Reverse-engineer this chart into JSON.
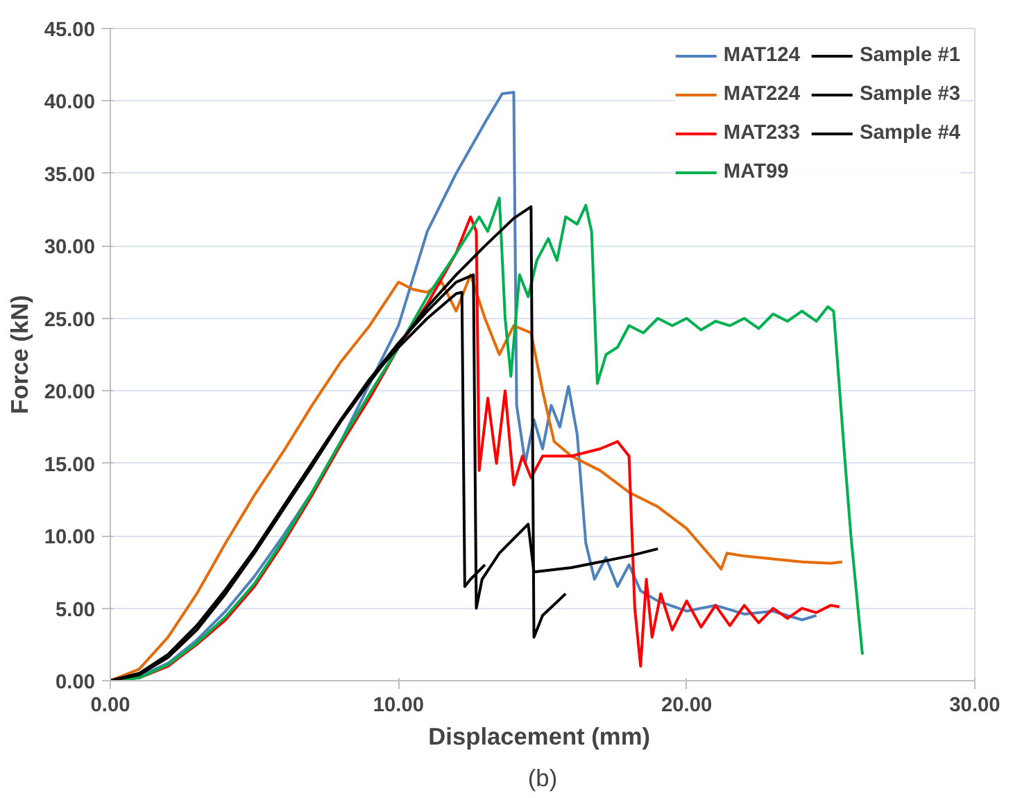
{
  "chart_data": {
    "type": "line",
    "xlabel": "Displacement  (mm)",
    "ylabel": "Force (kN)",
    "annotations": [
      "(b)"
    ],
    "xlim": [
      0,
      30
    ],
    "ylim": [
      0,
      45
    ],
    "xticks": [
      {
        "value": 0,
        "label": "0.00"
      },
      {
        "value": 10,
        "label": "10.00"
      },
      {
        "value": 20,
        "label": "20.00"
      },
      {
        "value": 30,
        "label": "30.00"
      }
    ],
    "yticks": [
      {
        "value": 0,
        "label": "0.00"
      },
      {
        "value": 5,
        "label": "5.00"
      },
      {
        "value": 10,
        "label": "10.00"
      },
      {
        "value": 15,
        "label": "15.00"
      },
      {
        "value": 20,
        "label": "20.00"
      },
      {
        "value": 25,
        "label": "25.00"
      },
      {
        "value": 30,
        "label": "30.00"
      },
      {
        "value": 35,
        "label": "35.00"
      },
      {
        "value": 40,
        "label": "40.00"
      },
      {
        "value": 45,
        "label": "45.00"
      }
    ],
    "grid": "y",
    "legend": "top right",
    "marker": "none",
    "line_style": "solid",
    "series": [
      {
        "name": "MAT124",
        "color": "#4f81bd",
        "x": [
          0,
          1,
          2,
          3,
          4,
          5,
          6,
          7,
          8,
          9,
          10,
          11,
          12,
          13,
          13.6,
          14.0,
          14.1,
          14.4,
          14.7,
          15.0,
          15.3,
          15.6,
          15.9,
          16.2,
          16.5,
          16.8,
          17.2,
          17.6,
          18.0,
          18.4,
          19,
          20,
          21,
          22,
          23,
          24,
          24.5
        ],
        "values": [
          0,
          0.3,
          1.2,
          2.8,
          4.8,
          7.2,
          10,
          13,
          16.5,
          20.5,
          24.5,
          31,
          35,
          38.5,
          40.5,
          40.6,
          19,
          15,
          18,
          16,
          19,
          17.5,
          20.3,
          17,
          9.5,
          7,
          8.5,
          6.5,
          8,
          6.2,
          5.5,
          4.8,
          5.2,
          4.6,
          4.8,
          4.2,
          4.5
        ]
      },
      {
        "name": "MAT224",
        "color": "#e46c0a",
        "x": [
          0,
          1,
          2,
          3,
          4,
          5,
          6,
          7,
          8,
          9,
          10,
          10.5,
          11,
          11.5,
          12,
          12.5,
          13,
          13.5,
          14,
          14.6,
          15.0,
          15.4,
          16,
          17,
          18,
          19,
          20,
          21,
          21.2,
          21.4,
          22,
          23,
          24,
          25,
          25.4
        ],
        "values": [
          0,
          0.8,
          3,
          6,
          9.5,
          12.8,
          15.8,
          19,
          22,
          24.5,
          27.5,
          27,
          26.8,
          27.5,
          25.5,
          28,
          25,
          22.5,
          24.5,
          24,
          20,
          16.5,
          15.5,
          14.5,
          13,
          12,
          10.5,
          8.2,
          7.7,
          8.8,
          8.6,
          8.4,
          8.2,
          8.1,
          8.2
        ]
      },
      {
        "name": "MAT233",
        "color": "#ff0000",
        "x": [
          0,
          1,
          2,
          3,
          4,
          5,
          6,
          7,
          8,
          9,
          10,
          11,
          12,
          12.5,
          12.7,
          12.8,
          13.1,
          13.4,
          13.7,
          14.0,
          14.3,
          14.6,
          15,
          16,
          17,
          17.6,
          18.0,
          18.2,
          18.4,
          18.6,
          18.8,
          19.1,
          19.5,
          20,
          20.5,
          21,
          21.5,
          22,
          22.5,
          23,
          23.5,
          24,
          24.5,
          25,
          25.3
        ],
        "values": [
          0,
          0.2,
          1,
          2.5,
          4.2,
          6.5,
          9.5,
          12.8,
          16.3,
          19.5,
          23,
          26,
          29.5,
          32,
          31,
          14.5,
          19.5,
          15,
          20,
          13.5,
          15.5,
          14,
          15.5,
          15.5,
          16,
          16.5,
          15.5,
          5,
          1,
          7,
          3,
          6,
          3.5,
          5.5,
          3.7,
          5.2,
          3.8,
          5.2,
          4,
          5,
          4.3,
          5,
          4.7,
          5.2,
          5.1
        ]
      },
      {
        "name": "MAT99",
        "color": "#00b050",
        "x": [
          0,
          1,
          2,
          3,
          4,
          5,
          6,
          7,
          8,
          9,
          10,
          11,
          12,
          12.8,
          13.1,
          13.5,
          13.7,
          13.9,
          14.2,
          14.5,
          14.8,
          15.2,
          15.5,
          15.8,
          16.2,
          16.5,
          16.7,
          16.9,
          17.2,
          17.6,
          18,
          18.5,
          19,
          19.5,
          20,
          20.5,
          21,
          21.5,
          22,
          22.5,
          23,
          23.5,
          24,
          24.5,
          24.9,
          25.1,
          25.5,
          25.7,
          26.1
        ],
        "values": [
          0,
          0.2,
          1.1,
          2.6,
          4.4,
          6.7,
          9.7,
          13,
          16.5,
          19.8,
          23,
          26.5,
          29.5,
          32,
          31,
          33.3,
          25,
          21,
          28,
          26.5,
          29,
          30.5,
          29,
          32,
          31.5,
          32.8,
          31,
          20.5,
          22.5,
          23,
          24.5,
          24,
          25,
          24.5,
          25,
          24.2,
          24.8,
          24.5,
          25,
          24.3,
          25.3,
          24.8,
          25.5,
          24.8,
          25.8,
          25.5,
          15,
          10,
          1.8
        ]
      },
      {
        "name": "Sample #1",
        "color": "#000000",
        "x": [
          0,
          1,
          2,
          3,
          4,
          5,
          6,
          7,
          8,
          9,
          10,
          11,
          12,
          12.2,
          12.3,
          12.5,
          13
        ],
        "values": [
          0,
          0.5,
          1.8,
          3.8,
          6.3,
          9,
          12,
          15,
          18,
          20.8,
          23,
          25,
          26.7,
          26.8,
          6.5,
          7,
          8
        ]
      },
      {
        "name": "Sample #3",
        "color": "#000000",
        "x": [
          0,
          1,
          2,
          3,
          4,
          5,
          6,
          7,
          8,
          9,
          10,
          11,
          12,
          12.6,
          12.7,
          12.9,
          13.5,
          14.5,
          14.7,
          16,
          17,
          18,
          19
        ],
        "values": [
          0,
          0.5,
          1.8,
          3.8,
          6.2,
          9,
          12,
          15,
          18,
          20.8,
          23.3,
          25.5,
          27.5,
          28,
          5,
          7,
          8.8,
          10.8,
          7.5,
          7.8,
          8.2,
          8.6,
          9.1
        ]
      },
      {
        "name": "Sample #4",
        "color": "#000000",
        "x": [
          0,
          1,
          2,
          3,
          4,
          5,
          6,
          7,
          8,
          9,
          10,
          11,
          12,
          13,
          14,
          14.6,
          14.7,
          15,
          15.8
        ],
        "values": [
          0,
          0.4,
          1.6,
          3.5,
          6,
          8.8,
          11.8,
          14.8,
          17.9,
          20.6,
          23.2,
          25.8,
          28,
          30,
          31.9,
          32.7,
          3,
          4.5,
          6
        ]
      }
    ]
  }
}
